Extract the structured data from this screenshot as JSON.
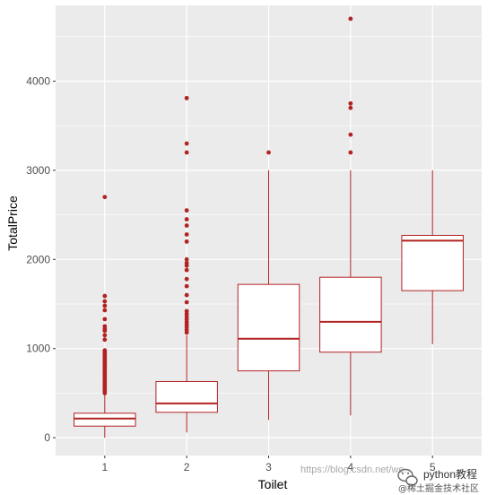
{
  "chart_data": {
    "type": "boxplot",
    "xlabel": "Toilet",
    "ylabel": "TotalPrice",
    "categories": [
      "1",
      "2",
      "3",
      "4",
      "5"
    ],
    "ylim": [
      -200,
      4850
    ],
    "yticks": [
      0,
      1000,
      2000,
      3000,
      4000
    ],
    "grid": true,
    "colors": {
      "panel": "#ebebeb",
      "grid": "#ffffff",
      "box": "#b22222",
      "box_fill": "#ffffff"
    },
    "boxes": [
      {
        "category": "1",
        "min": 0,
        "q1": 130,
        "median": 215,
        "q3": 275,
        "max": 490,
        "outliers": [
          500,
          520,
          540,
          560,
          580,
          600,
          620,
          640,
          660,
          680,
          700,
          720,
          740,
          760,
          780,
          800,
          820,
          840,
          860,
          880,
          900,
          920,
          940,
          960,
          980,
          1100,
          1150,
          1200,
          1220,
          1250,
          1330,
          1430,
          1480,
          1530,
          1590,
          2700
        ]
      },
      {
        "category": "2",
        "min": 60,
        "q1": 285,
        "median": 385,
        "q3": 630,
        "max": 1150,
        "outliers": [
          1180,
          1210,
          1240,
          1270,
          1300,
          1330,
          1360,
          1390,
          1420,
          1520,
          1600,
          1700,
          1780,
          1880,
          1930,
          1960,
          2000,
          2200,
          2280,
          2380,
          2450,
          2550,
          3200,
          3300,
          3810
        ]
      },
      {
        "category": "3",
        "min": 200,
        "q1": 750,
        "median": 1110,
        "q3": 1720,
        "max": 3000,
        "outliers": [
          3200
        ]
      },
      {
        "category": "4",
        "min": 250,
        "q1": 960,
        "median": 1300,
        "q3": 1800,
        "max": 3000,
        "outliers": [
          3200,
          3400,
          3700,
          3750,
          4700
        ]
      },
      {
        "category": "5",
        "min": 1050,
        "q1": 1650,
        "median": 2210,
        "q3": 2270,
        "max": 3000,
        "outliers": []
      }
    ]
  },
  "watermark": {
    "url": "https://blog.csdn.net/we...",
    "brand": "python教程",
    "sub": "@稀土掘金技术社区"
  }
}
